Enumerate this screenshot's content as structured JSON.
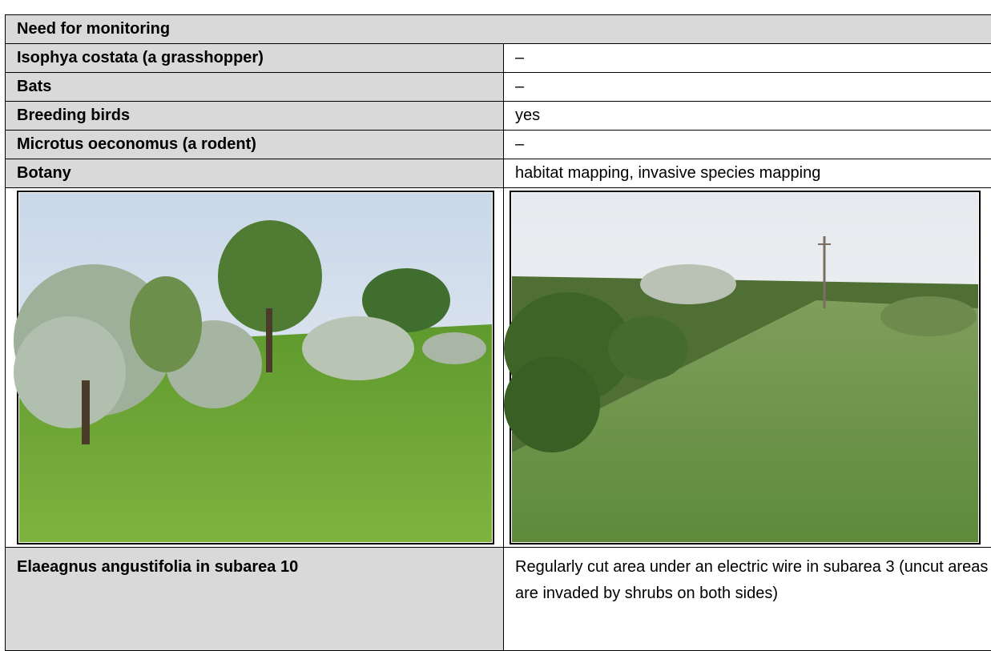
{
  "header": {
    "title": "Need for monitoring"
  },
  "table": {
    "rows": [
      [
        "Isophya costata (a grasshopper)",
        "–"
      ],
      [
        "Bats",
        "–"
      ],
      [
        "Breeding birds",
        "yes"
      ],
      [
        "Microtus oeconomus (a rodent)",
        "–"
      ],
      [
        "Botany",
        "habitat mapping, invasive species mapping"
      ]
    ]
  },
  "captions": [
    "Elaeagnus angustifolia in subarea 10",
    "Regularly cut area under an electric wire in subarea 3 (uncut areas are invaded by shrubs on both sides)"
  ]
}
